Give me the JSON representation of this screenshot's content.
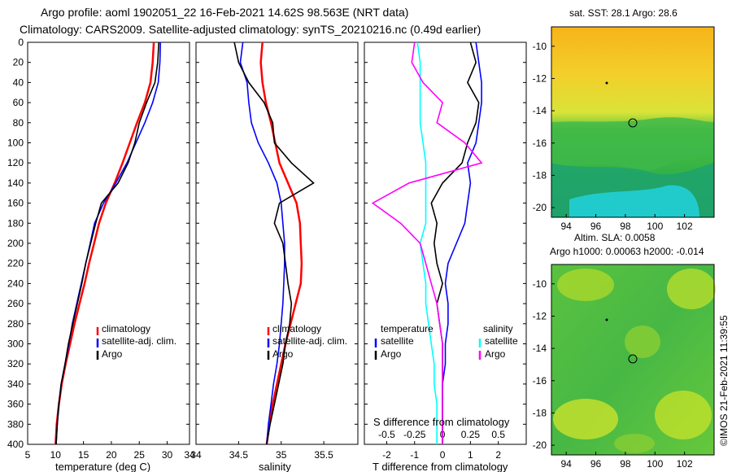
{
  "title_line1": "Argo profile: aoml 1902051_22 16-Feb-2021 14.62S 98.563E (NRT data)",
  "title_line2": "Climatology: CARS2009. Satellite-adjusted climatology: synTS_20210216.nc (0.49d earlier)",
  "side_label": "©IMOS 21-Feb-2021 11:39:55",
  "colors": {
    "climatology": "#ff0000",
    "satellite": "#0000ff",
    "argo": "#000000",
    "satellite_salinity": "#00ffff",
    "argo_salinity": "#ff00ff"
  },
  "chart_data": [
    {
      "type": "line",
      "name": "temperature",
      "xlabel": "temperature (deg C)",
      "ylabel": "",
      "xlim": [
        5,
        34
      ],
      "ylim": [
        400,
        0
      ],
      "xticks": [
        "5",
        "10",
        "15",
        "20",
        "25",
        "30",
        "34"
      ],
      "yticks": [
        "0",
        "20",
        "40",
        "60",
        "80",
        "100",
        "120",
        "140",
        "160",
        "180",
        "200",
        "220",
        "240",
        "260",
        "280",
        "300",
        "320",
        "340",
        "360",
        "380",
        "400"
      ],
      "legend": [
        "climatology",
        "satellite-adj. clim.",
        "Argo"
      ],
      "series": [
        {
          "name": "climatology",
          "color": "#ff0000",
          "x": [
            27.6,
            27.4,
            27.0,
            26.0,
            24.6,
            23.3,
            22.0,
            20.6,
            19.0,
            17.8,
            16.9,
            16.0,
            15.2,
            14.3,
            13.4,
            12.6,
            11.8,
            11.1,
            10.6,
            10.2,
            10.0
          ],
          "y": [
            0,
            20,
            40,
            60,
            80,
            100,
            120,
            140,
            160,
            180,
            200,
            220,
            240,
            260,
            280,
            300,
            320,
            340,
            360,
            380,
            400
          ]
        },
        {
          "name": "satellite-adj. clim.",
          "color": "#0000ff",
          "x": [
            28.8,
            28.7,
            28.4,
            27.4,
            26.0,
            24.4,
            22.8,
            20.8,
            18.6,
            17.0,
            16.2,
            15.4,
            14.6,
            13.8,
            13.0,
            12.4,
            11.7,
            11.0,
            10.6,
            10.3,
            10.1
          ],
          "y": [
            0,
            20,
            40,
            60,
            80,
            100,
            120,
            140,
            160,
            180,
            200,
            220,
            240,
            260,
            280,
            300,
            320,
            340,
            360,
            380,
            400
          ]
        },
        {
          "name": "Argo",
          "color": "#000000",
          "x": [
            28.5,
            28.3,
            27.8,
            26.3,
            25.0,
            24.2,
            23.0,
            21.2,
            18.2,
            17.2,
            16.3,
            15.4,
            14.7,
            13.9,
            13.1,
            12.3,
            11.7,
            11.0,
            10.6,
            10.3,
            10.1
          ],
          "y": [
            0,
            20,
            40,
            60,
            80,
            100,
            120,
            140,
            160,
            180,
            200,
            220,
            240,
            260,
            280,
            300,
            320,
            340,
            360,
            380,
            400
          ]
        }
      ]
    },
    {
      "type": "line",
      "name": "salinity",
      "xlabel": "salinity",
      "ylabel": "",
      "xlim": [
        34,
        35.9
      ],
      "ylim": [
        400,
        0
      ],
      "xticks": [
        "34",
        "34.5",
        "35",
        "35.5"
      ],
      "legend": [
        "climatology",
        "satellite-adj. clim.",
        "Argo"
      ],
      "series": [
        {
          "name": "climatology",
          "color": "#ff0000",
          "x": [
            34.78,
            34.76,
            34.78,
            34.82,
            34.88,
            34.93,
            34.98,
            35.08,
            35.18,
            35.22,
            35.23,
            35.24,
            35.23,
            35.17,
            35.11,
            35.05,
            35.0,
            34.95,
            34.9,
            34.86,
            34.83
          ],
          "y": [
            0,
            20,
            40,
            60,
            80,
            100,
            120,
            140,
            160,
            180,
            200,
            220,
            240,
            260,
            280,
            300,
            320,
            340,
            360,
            380,
            400
          ]
        },
        {
          "name": "satellite-adj. clim.",
          "color": "#0000ff",
          "x": [
            34.55,
            34.52,
            34.6,
            34.62,
            34.65,
            34.73,
            34.85,
            34.95,
            35.0,
            35.02,
            35.04,
            35.04,
            35.03,
            35.02,
            35.0,
            34.98,
            34.95,
            34.91,
            34.88,
            34.85,
            34.83
          ],
          "y": [
            0,
            20,
            40,
            60,
            80,
            100,
            120,
            140,
            160,
            180,
            200,
            220,
            240,
            260,
            280,
            300,
            320,
            340,
            360,
            380,
            400
          ]
        },
        {
          "name": "Argo",
          "color": "#000000",
          "x": [
            34.45,
            34.5,
            34.62,
            34.8,
            34.9,
            34.92,
            35.12,
            35.38,
            34.98,
            34.92,
            35.02,
            35.05,
            35.08,
            35.12,
            35.1,
            35.05,
            35.02,
            34.97,
            34.92,
            34.87,
            34.83
          ],
          "y": [
            0,
            20,
            40,
            60,
            80,
            100,
            120,
            140,
            160,
            180,
            200,
            220,
            240,
            260,
            280,
            300,
            320,
            340,
            360,
            380,
            400
          ]
        }
      ]
    },
    {
      "type": "line",
      "name": "difference",
      "xlabel": "T difference from climatology",
      "ylabel": "",
      "xlim": [
        -2.8,
        3.0
      ],
      "ylim": [
        400,
        0
      ],
      "xticks": [
        "-2",
        "-1",
        "0",
        "1",
        "2"
      ],
      "x2label": "S difference from climatology",
      "x2ticks": [
        "-0.5",
        "-0.25",
        "0",
        "0.25",
        "0.5"
      ],
      "legend_temperature_title": "temperature",
      "legend_salinity_title": "salinity",
      "legend": [
        "satellite",
        "Argo",
        "satellite",
        "Argo"
      ],
      "series": [
        {
          "name": "T satellite",
          "color": "#0000ff",
          "x": [
            1.2,
            1.3,
            1.4,
            1.4,
            1.3,
            1.2,
            0.9,
            1.0,
            0.9,
            0.8,
            0.5,
            0.2,
            0.1,
            0.2,
            0.2,
            0.1,
            0.1,
            0.0,
            0.0,
            0.0,
            0.0
          ],
          "y": [
            0,
            20,
            40,
            60,
            80,
            100,
            120,
            140,
            160,
            180,
            200,
            220,
            240,
            260,
            280,
            300,
            320,
            340,
            360,
            380,
            400
          ]
        },
        {
          "name": "T Argo",
          "color": "#000000",
          "x": [
            1.0,
            1.2,
            0.9,
            1.3,
            1.2,
            0.9,
            0.7,
            0.0,
            -0.4,
            -0.2,
            -0.3,
            -0.2,
            0.0,
            -0.2,
            -0.1,
            0.0,
            0.0,
            0.0,
            0.0,
            0.0,
            0.0
          ],
          "y": [
            0,
            20,
            40,
            60,
            80,
            100,
            120,
            140,
            160,
            180,
            200,
            220,
            240,
            260,
            280,
            300,
            320,
            340,
            360,
            380,
            400
          ]
        },
        {
          "name": "S satellite",
          "color": "#00ffff",
          "x": [
            -0.9,
            -0.8,
            -0.8,
            -0.8,
            -0.8,
            -0.7,
            -0.6,
            -0.6,
            -0.6,
            -0.6,
            -0.8,
            -0.7,
            -0.6,
            -0.6,
            -0.5,
            -0.4,
            -0.3,
            -0.3,
            -0.2,
            -0.2,
            -0.2
          ],
          "y": [
            0,
            20,
            40,
            60,
            80,
            100,
            120,
            140,
            160,
            180,
            200,
            220,
            240,
            260,
            280,
            300,
            320,
            340,
            360,
            380,
            400
          ]
        },
        {
          "name": "S Argo",
          "color": "#ff00ff",
          "x": [
            -1.0,
            -1.1,
            -0.7,
            0.0,
            -0.2,
            0.8,
            1.4,
            -1.2,
            -2.5,
            -1.5,
            -0.8,
            -0.6,
            -0.4,
            -0.2,
            -0.1,
            0.0,
            0.0,
            0.0,
            0.0,
            0.0,
            0.0
          ],
          "y": [
            0,
            20,
            40,
            60,
            80,
            100,
            120,
            140,
            160,
            180,
            200,
            220,
            240,
            260,
            280,
            300,
            320,
            340,
            360,
            380,
            400
          ]
        }
      ]
    },
    {
      "type": "heatmap",
      "name": "sst_map",
      "title": "sat. SST: 28.1 Argo: 28.6",
      "xticks": [
        "94",
        "96",
        "98",
        "100",
        "102"
      ],
      "yticks": [
        "-10",
        "-12",
        "-14",
        "-16",
        "-18",
        "-20"
      ],
      "xlim": [
        93,
        104
      ],
      "ylim": [
        -20.6,
        -8.8
      ],
      "marker": {
        "lon": 98.56,
        "lat": -14.62
      }
    },
    {
      "type": "heatmap",
      "name": "sla_map",
      "title": "Altim. SLA: 0.0058",
      "subtitle": "Argo h1000: 0.00063 h2000: -0.014",
      "xticks": [
        "94",
        "96",
        "98",
        "100",
        "102"
      ],
      "yticks": [
        "-10",
        "-12",
        "-14",
        "-16",
        "-18",
        "-20"
      ],
      "xlim": [
        93,
        104
      ],
      "ylim": [
        -20.6,
        -8.8
      ],
      "marker": {
        "lon": 98.56,
        "lat": -14.62
      }
    }
  ]
}
